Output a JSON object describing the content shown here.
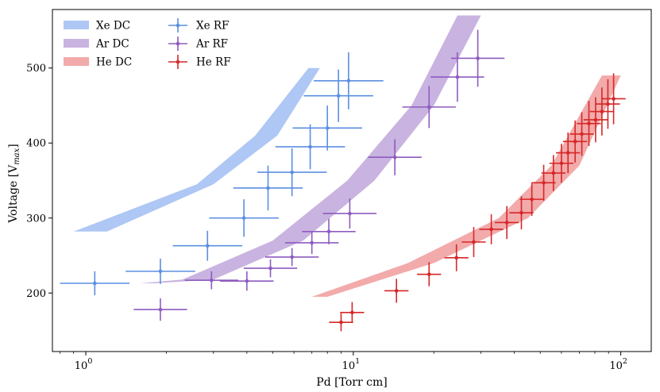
{
  "chart_data": {
    "type": "scatter",
    "xlabel": "Pd [Torr cm]",
    "ylabel": "Voltage [V",
    "ylabel_sub": "max",
    "ylabel_close": "]",
    "xscale": "log",
    "xlim": [
      0.75,
      130
    ],
    "ylim": [
      122,
      578
    ],
    "x_ticks": [
      {
        "value": 1,
        "base": "10",
        "exp": "0"
      },
      {
        "value": 10,
        "base": "10",
        "exp": "1"
      },
      {
        "value": 100,
        "base": "10",
        "exp": "2"
      }
    ],
    "y_ticks": [
      200,
      300,
      400,
      500
    ],
    "legend_position": "top-left",
    "bands": [
      {
        "name": "Xe DC",
        "color": "#aec7f4",
        "lower": [
          [
            1.2,
            282
          ],
          [
            3.0,
            345
          ],
          [
            5.2,
            410
          ],
          [
            7.5,
            500
          ]
        ],
        "upper": [
          [
            0.9,
            282
          ],
          [
            2.6,
            345
          ],
          [
            4.3,
            410
          ],
          [
            6.8,
            500
          ]
        ]
      },
      {
        "name": "Ar DC",
        "color": "#c9b3e0",
        "lower": [
          [
            1.8,
            213
          ],
          [
            3.0,
            218
          ],
          [
            6.5,
            270
          ],
          [
            12.0,
            350
          ],
          [
            20.0,
            450
          ],
          [
            30.0,
            570
          ]
        ],
        "upper": [
          [
            1.6,
            213
          ],
          [
            2.3,
            218
          ],
          [
            5.0,
            270
          ],
          [
            9.5,
            350
          ],
          [
            16.5,
            450
          ],
          [
            24.5,
            570
          ]
        ]
      },
      {
        "name": "He DC",
        "color": "#f2aaaa",
        "lower": [
          [
            8.0,
            195
          ],
          [
            20.0,
            240
          ],
          [
            45.0,
            300
          ],
          [
            70.0,
            370
          ],
          [
            100.0,
            490
          ]
        ],
        "upper": [
          [
            7.0,
            195
          ],
          [
            16.0,
            240
          ],
          [
            35.0,
            300
          ],
          [
            55.0,
            370
          ],
          [
            85.0,
            490
          ]
        ]
      }
    ],
    "series": [
      {
        "name": "Xe RF",
        "color": "#5b8fe0",
        "points": [
          [
            1.08,
            213,
            16
          ],
          [
            1.9,
            229,
            17
          ],
          [
            2.85,
            263,
            20
          ],
          [
            3.9,
            300,
            25
          ],
          [
            4.8,
            340,
            30
          ],
          [
            5.9,
            361,
            32
          ],
          [
            6.9,
            395,
            30
          ],
          [
            8.0,
            420,
            30
          ],
          [
            8.8,
            463,
            35
          ],
          [
            9.6,
            483,
            38
          ]
        ],
        "xerr": 0.13
      },
      {
        "name": "Ar RF",
        "color": "#8e5bbf",
        "points": [
          [
            1.9,
            178,
            15
          ],
          [
            2.95,
            217,
            12
          ],
          [
            4.0,
            216,
            13
          ],
          [
            4.9,
            233,
            12
          ],
          [
            5.9,
            248,
            12
          ],
          [
            7.0,
            267,
            15
          ],
          [
            8.1,
            282,
            17
          ],
          [
            9.7,
            306,
            20
          ],
          [
            14.3,
            381,
            24
          ],
          [
            19.2,
            448,
            28
          ],
          [
            24.5,
            488,
            33
          ],
          [
            29.2,
            513,
            38
          ]
        ],
        "xerr": 0.1
      },
      {
        "name": "He RF",
        "color": "#d62728",
        "points": [
          [
            9.0,
            161,
            12
          ],
          [
            9.9,
            174,
            14
          ],
          [
            14.5,
            203,
            16
          ],
          [
            19.2,
            225,
            16
          ],
          [
            24.3,
            247,
            18
          ],
          [
            28.2,
            268,
            20
          ],
          [
            32.8,
            285,
            20
          ],
          [
            37.5,
            294,
            22
          ],
          [
            42.5,
            307,
            22
          ],
          [
            46.5,
            325,
            22
          ],
          [
            51.5,
            347,
            24
          ],
          [
            56.0,
            360,
            24
          ],
          [
            60.0,
            373,
            26
          ],
          [
            63.5,
            387,
            27
          ],
          [
            67.5,
            402,
            28
          ],
          [
            71.5,
            412,
            29
          ],
          [
            76.0,
            426,
            30
          ],
          [
            80.5,
            431,
            30
          ],
          [
            85.0,
            442,
            32
          ],
          [
            89.5,
            452,
            33
          ],
          [
            94.0,
            459,
            34
          ]
        ],
        "xerr": 0.045
      }
    ]
  }
}
